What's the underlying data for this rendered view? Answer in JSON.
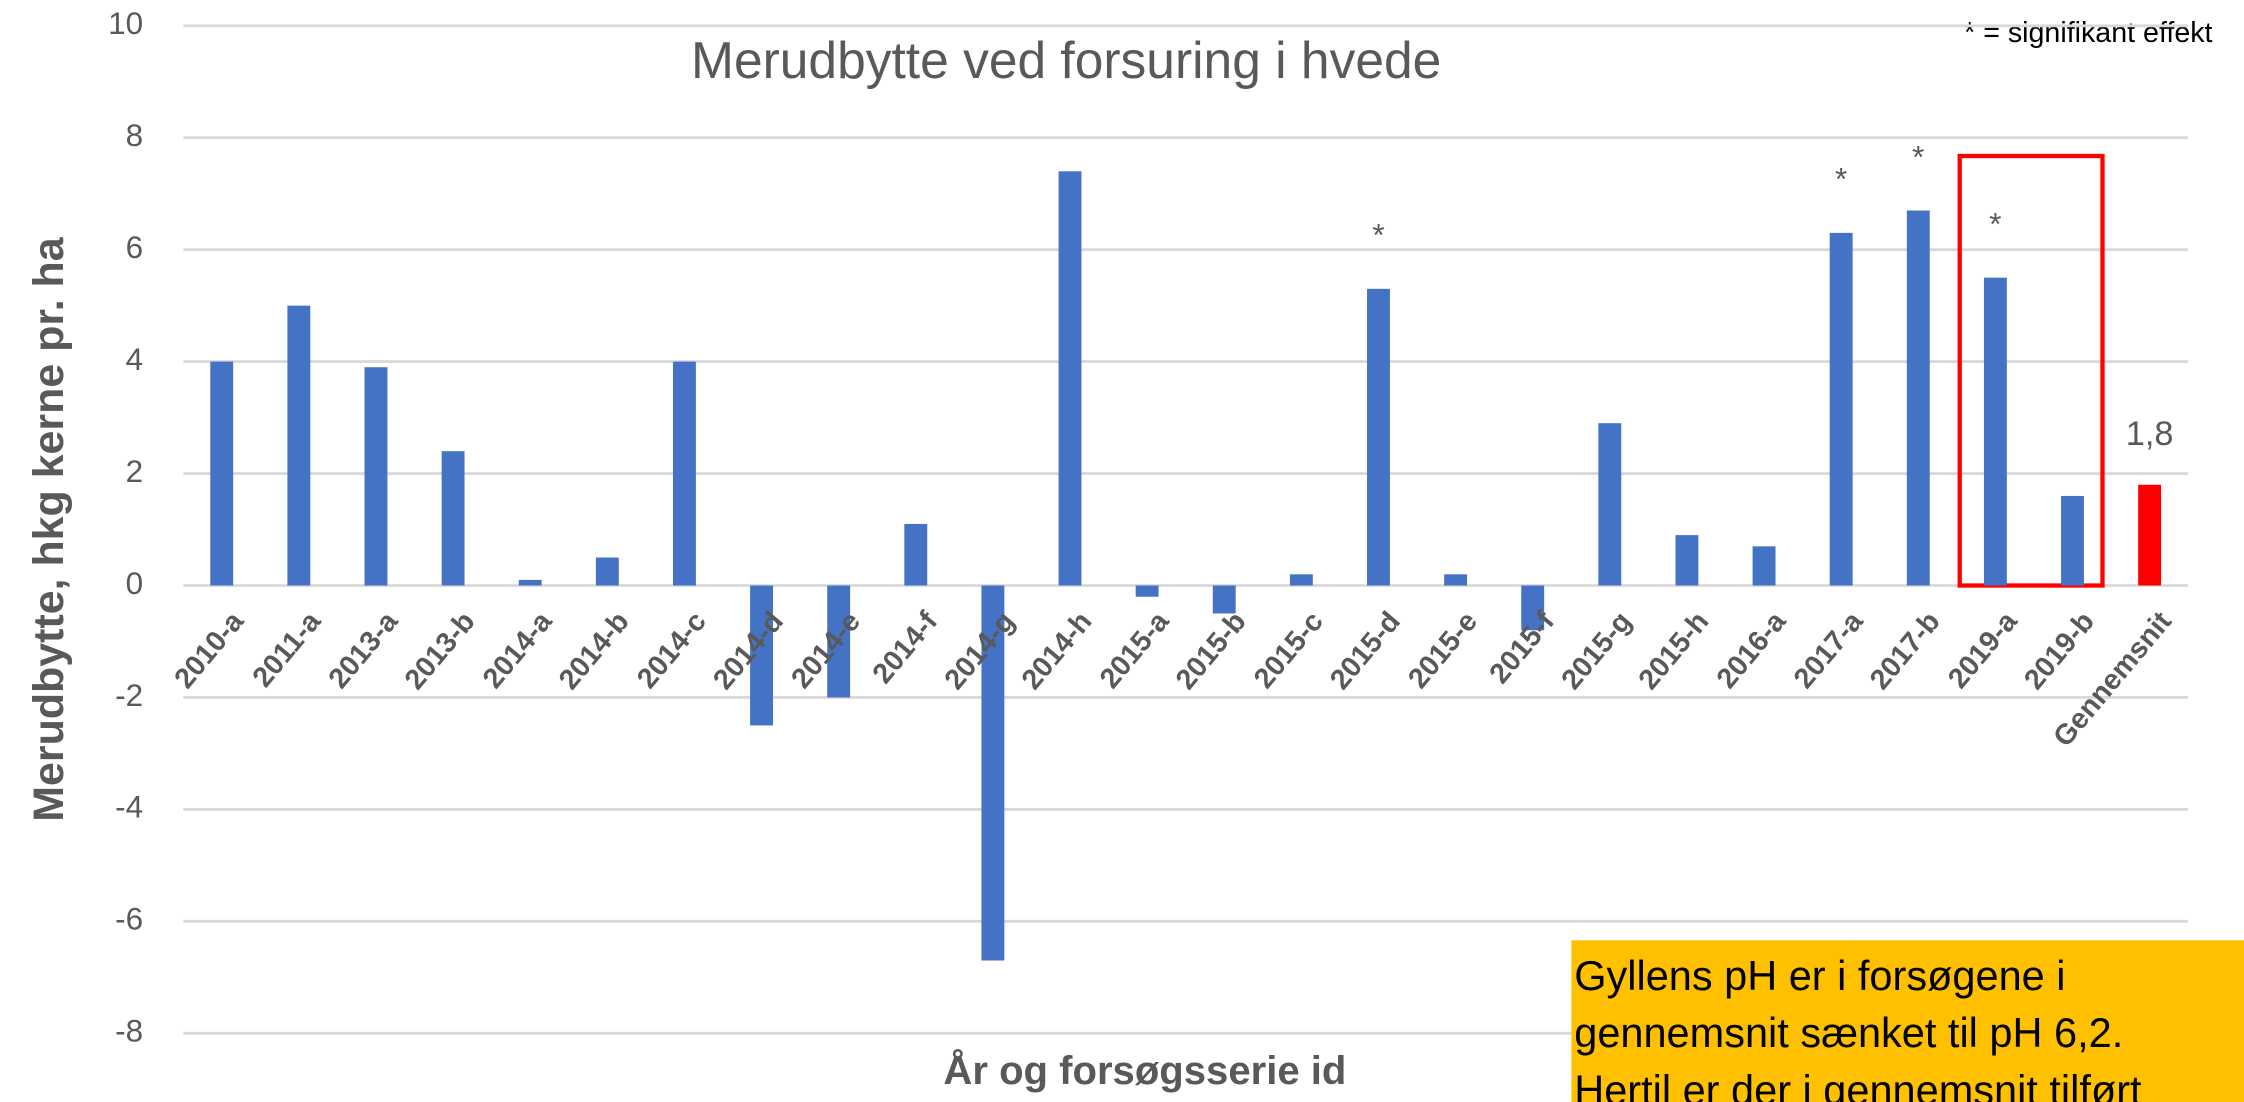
{
  "chart_data": {
    "type": "bar",
    "title": "Merudbytte ved forsuring i hvede",
    "y_label": "Merudbytte, hkg kerne pr. ha",
    "x_label": "År og forsøgsserie id",
    "categories": [
      "2010-a",
      "2011-a",
      "2013-a",
      "2013-b",
      "2014-a",
      "2014-b",
      "2014-c",
      "2014-d",
      "2014-e",
      "2014-f",
      "2014-g",
      "2014-h",
      "2015-a",
      "2015-b",
      "2015-c",
      "2015-d",
      "2015-e",
      "2015-f",
      "2015-g",
      "2015-h",
      "2016-a",
      "2017-a",
      "2017-b",
      "2019-a",
      "2019-b",
      "Gennemsnit"
    ],
    "values": [
      4.0,
      5.0,
      3.9,
      2.4,
      0.1,
      0.5,
      4.0,
      -2.5,
      -2.0,
      1.1,
      -6.7,
      7.4,
      -0.2,
      -0.5,
      0.2,
      5.3,
      0.2,
      -0.8,
      2.9,
      0.9,
      0.7,
      6.3,
      6.7,
      5.5,
      1.6,
      1.8
    ],
    "value_labels": [
      null,
      null,
      null,
      null,
      null,
      null,
      null,
      null,
      null,
      null,
      null,
      null,
      null,
      null,
      null,
      null,
      null,
      null,
      null,
      null,
      null,
      null,
      null,
      null,
      null,
      "1,8"
    ],
    "colors": [
      "#4472c4",
      "#4472c4",
      "#4472c4",
      "#4472c4",
      "#4472c4",
      "#4472c4",
      "#4472c4",
      "#4472c4",
      "#4472c4",
      "#4472c4",
      "#4472c4",
      "#4472c4",
      "#4472c4",
      "#4472c4",
      "#4472c4",
      "#4472c4",
      "#4472c4",
      "#4472c4",
      "#4472c4",
      "#4472c4",
      "#4472c4",
      "#4472c4",
      "#4472c4",
      "#4472c4",
      "#4472c4",
      "#ff0000"
    ],
    "annotations": [
      {
        "category": "2015-d",
        "label": "*"
      },
      {
        "category": "2017-a",
        "label": "*"
      },
      {
        "category": "2017-b",
        "label": "*"
      },
      {
        "category": "2019-a",
        "label": "*"
      }
    ],
    "highlight": [
      "2019-a",
      "2019-b"
    ],
    "note": "* = signifikant effekt",
    "textbox": [
      "Gyllens pH er i forsøgene i",
      "gennemsnit sænket til pH 6,2.",
      "Hertil er der i gennemsnit tilført"
    ],
    "ylim": [
      -8,
      10
    ],
    "yticks": [
      -8,
      -6,
      -4,
      -2,
      0,
      2,
      4,
      6,
      8,
      10
    ],
    "grid": true
  }
}
